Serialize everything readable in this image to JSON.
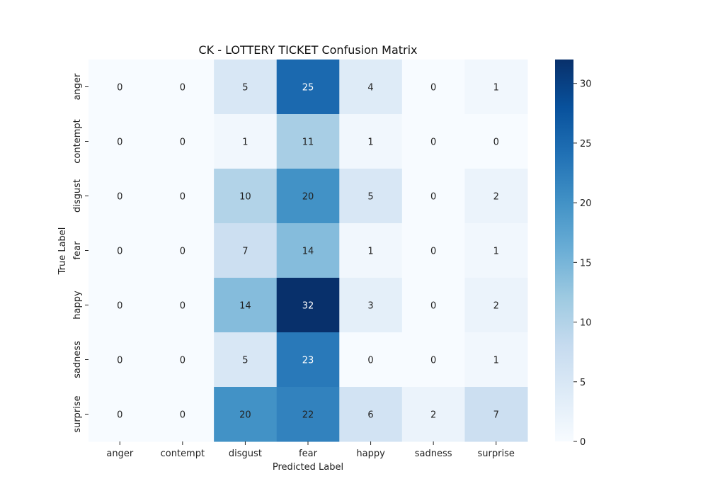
{
  "chart_data": {
    "type": "heatmap",
    "title": "CK - LOTTERY TICKET Confusion Matrix",
    "xlabel": "Predicted Label",
    "ylabel": "True Label",
    "x_categories": [
      "anger",
      "contempt",
      "disgust",
      "fear",
      "happy",
      "sadness",
      "surprise"
    ],
    "y_categories": [
      "anger",
      "contempt",
      "disgust",
      "fear",
      "happy",
      "sadness",
      "surprise"
    ],
    "values": [
      [
        0,
        0,
        5,
        25,
        4,
        0,
        1
      ],
      [
        0,
        0,
        1,
        11,
        1,
        0,
        0
      ],
      [
        0,
        0,
        10,
        20,
        5,
        0,
        2
      ],
      [
        0,
        0,
        7,
        14,
        1,
        0,
        1
      ],
      [
        0,
        0,
        14,
        32,
        3,
        0,
        2
      ],
      [
        0,
        0,
        5,
        23,
        0,
        0,
        1
      ],
      [
        0,
        0,
        20,
        22,
        6,
        2,
        7
      ]
    ],
    "colorbar": {
      "range": [
        0,
        32
      ],
      "ticks": [
        0,
        5,
        10,
        15,
        20,
        25,
        30
      ],
      "colormap": "Blues"
    }
  }
}
